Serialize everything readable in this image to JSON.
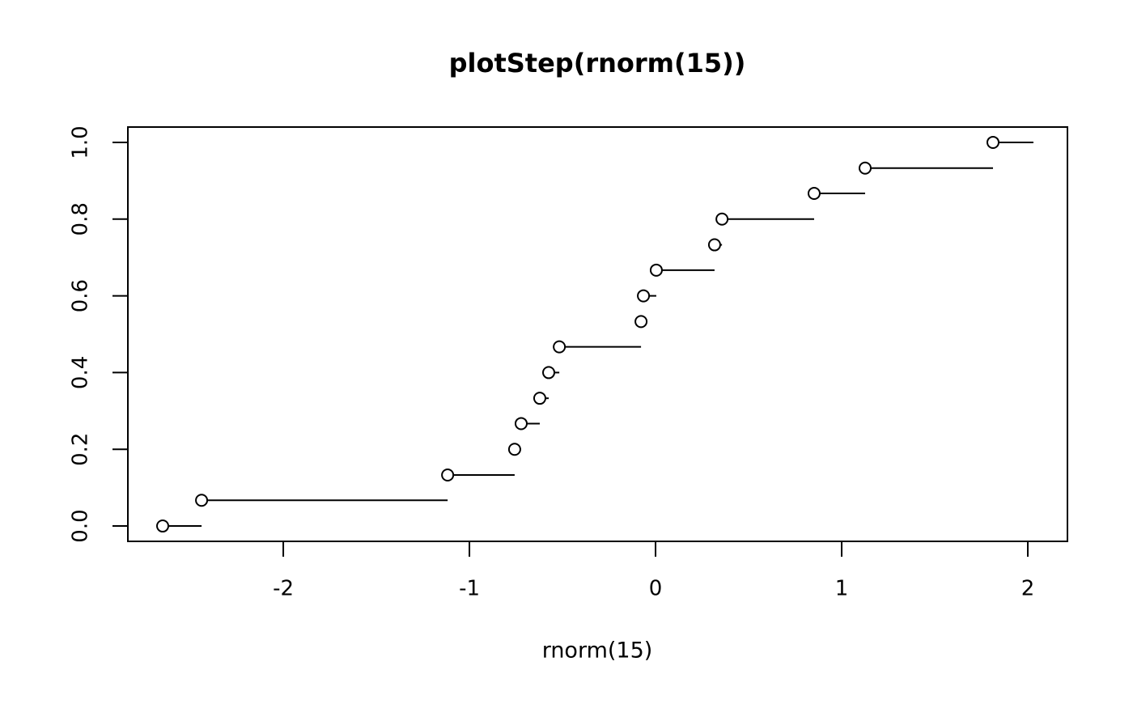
{
  "chart_data": {
    "type": "step",
    "title": "plotStep(rnorm(15))",
    "x_label": "rnorm(15)",
    "x": [
      -2.648,
      -2.439,
      -1.117,
      -0.757,
      -0.722,
      -0.622,
      -0.574,
      -0.517,
      -0.078,
      -0.065,
      0.004,
      0.317,
      0.357,
      0.852,
      1.126,
      1.813
    ],
    "values": [
      0,
      0.067,
      0.133,
      0.2,
      0.267,
      0.333,
      0.4,
      0.467,
      0.533,
      0.6,
      0.667,
      0.733,
      0.8,
      0.867,
      0.933,
      1.0
    ],
    "step_end": 2.03,
    "color": "#000000",
    "xlim": [
      -2.835,
      2.213
    ],
    "ylim": [
      -0.04,
      1.04
    ],
    "xticks": [
      -2,
      -1,
      0,
      1,
      2
    ],
    "yticks": [
      {
        "value": 0,
        "label": "0.0"
      },
      0.2,
      0.4,
      0.6,
      0.8,
      {
        "value": 1,
        "label": "1.0"
      }
    ]
  }
}
